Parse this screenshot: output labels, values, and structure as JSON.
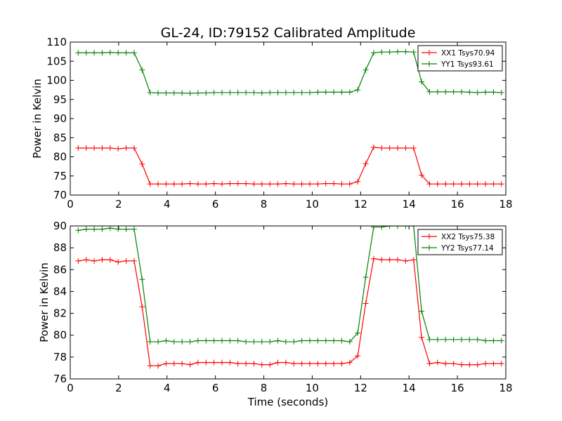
{
  "figure": {
    "title": "GL-24, ID:79152 Calibrated Amplitude",
    "xlabel": "Time (seconds)"
  },
  "chart_data": [
    {
      "type": "line",
      "title": "GL-24, ID:79152 Calibrated Amplitude",
      "xlabel": "",
      "ylabel": "Power in Kelvin",
      "xlim": [
        0,
        18
      ],
      "ylim": [
        70,
        110
      ],
      "xticks": [
        0,
        2,
        4,
        6,
        8,
        10,
        12,
        14,
        16,
        18
      ],
      "yticks": [
        70,
        75,
        80,
        85,
        90,
        95,
        100,
        105,
        110
      ],
      "legend_position": "top-right",
      "marker": "+",
      "series": [
        {
          "name": "XX1 Tsys70.94",
          "color": "#ff0000",
          "x": [
            0.33,
            0.66,
            0.99,
            1.32,
            1.65,
            1.98,
            2.31,
            2.64,
            2.97,
            3.3,
            3.63,
            3.96,
            4.29,
            4.62,
            4.95,
            5.28,
            5.61,
            5.94,
            6.27,
            6.6,
            6.93,
            7.26,
            7.59,
            7.92,
            8.25,
            8.58,
            8.91,
            9.24,
            9.57,
            9.9,
            10.23,
            10.56,
            10.89,
            11.22,
            11.55,
            11.88,
            12.21,
            12.54,
            12.87,
            13.2,
            13.53,
            13.86,
            14.19,
            14.52,
            14.85,
            15.18,
            15.51,
            15.84,
            16.17,
            16.5,
            16.83,
            17.16,
            17.49,
            17.82
          ],
          "y": [
            82.3,
            82.3,
            82.3,
            82.3,
            82.3,
            82.1,
            82.3,
            82.3,
            78.1,
            72.9,
            72.9,
            72.9,
            72.9,
            72.9,
            73.0,
            72.9,
            72.9,
            73.0,
            72.9,
            73.0,
            73.0,
            73.0,
            72.9,
            72.9,
            72.9,
            72.9,
            73.0,
            72.9,
            72.9,
            72.9,
            72.9,
            73.0,
            73.0,
            72.9,
            72.9,
            73.5,
            78.2,
            82.5,
            82.3,
            82.3,
            82.3,
            82.3,
            82.3,
            75.2,
            72.9,
            72.9,
            72.9,
            72.9,
            72.9,
            72.9,
            72.9,
            72.9,
            72.9,
            72.9
          ]
        },
        {
          "name": "YY1 Tsys93.61",
          "color": "#008000",
          "x": [
            0.33,
            0.66,
            0.99,
            1.32,
            1.65,
            1.98,
            2.31,
            2.64,
            2.97,
            3.3,
            3.63,
            3.96,
            4.29,
            4.62,
            4.95,
            5.28,
            5.61,
            5.94,
            6.27,
            6.6,
            6.93,
            7.26,
            7.59,
            7.92,
            8.25,
            8.58,
            8.91,
            9.24,
            9.57,
            9.9,
            10.23,
            10.56,
            10.89,
            11.22,
            11.55,
            11.88,
            12.21,
            12.54,
            12.87,
            13.2,
            13.53,
            13.86,
            14.19,
            14.52,
            14.85,
            15.18,
            15.51,
            15.84,
            16.17,
            16.5,
            16.83,
            17.16,
            17.49,
            17.82
          ],
          "y": [
            107.2,
            107.2,
            107.2,
            107.2,
            107.3,
            107.2,
            107.2,
            107.2,
            102.7,
            96.8,
            96.7,
            96.7,
            96.7,
            96.7,
            96.6,
            96.7,
            96.7,
            96.8,
            96.8,
            96.8,
            96.8,
            96.8,
            96.8,
            96.7,
            96.8,
            96.8,
            96.8,
            96.8,
            96.8,
            96.8,
            96.9,
            96.9,
            96.9,
            96.9,
            96.9,
            97.5,
            102.7,
            107.2,
            107.4,
            107.4,
            107.5,
            107.5,
            107.4,
            99.6,
            97.0,
            97.0,
            97.0,
            97.0,
            97.0,
            96.9,
            96.8,
            96.9,
            96.9,
            96.8
          ]
        }
      ]
    },
    {
      "type": "line",
      "title": "",
      "xlabel": "Time (seconds)",
      "ylabel": "Power in Kelvin",
      "xlim": [
        0,
        18
      ],
      "ylim": [
        76,
        90
      ],
      "xticks": [
        0,
        2,
        4,
        6,
        8,
        10,
        12,
        14,
        16,
        18
      ],
      "yticks": [
        76,
        78,
        80,
        82,
        84,
        86,
        88,
        90
      ],
      "legend_position": "top-right",
      "marker": "+",
      "series": [
        {
          "name": "XX2 Tsys75.38",
          "color": "#ff0000",
          "x": [
            0.33,
            0.66,
            0.99,
            1.32,
            1.65,
            1.98,
            2.31,
            2.64,
            2.97,
            3.3,
            3.63,
            3.96,
            4.29,
            4.62,
            4.95,
            5.28,
            5.61,
            5.94,
            6.27,
            6.6,
            6.93,
            7.26,
            7.59,
            7.92,
            8.25,
            8.58,
            8.91,
            9.24,
            9.57,
            9.9,
            10.23,
            10.56,
            10.89,
            11.22,
            11.55,
            11.88,
            12.21,
            12.54,
            12.87,
            13.2,
            13.53,
            13.86,
            14.19,
            14.52,
            14.85,
            15.18,
            15.51,
            15.84,
            16.17,
            16.5,
            16.83,
            17.16,
            17.49,
            17.82
          ],
          "y": [
            86.8,
            86.9,
            86.8,
            86.9,
            86.9,
            86.7,
            86.8,
            86.8,
            82.6,
            77.2,
            77.2,
            77.4,
            77.4,
            77.4,
            77.3,
            77.5,
            77.5,
            77.5,
            77.5,
            77.5,
            77.4,
            77.4,
            77.4,
            77.3,
            77.3,
            77.5,
            77.5,
            77.4,
            77.4,
            77.4,
            77.4,
            77.4,
            77.4,
            77.4,
            77.5,
            78.1,
            82.9,
            87.0,
            86.9,
            86.9,
            86.9,
            86.8,
            86.9,
            79.8,
            77.4,
            77.5,
            77.4,
            77.4,
            77.3,
            77.3,
            77.3,
            77.4,
            77.4,
            77.4
          ]
        },
        {
          "name": "YY2 Tsys77.14",
          "color": "#008000",
          "x": [
            0.33,
            0.66,
            0.99,
            1.32,
            1.65,
            1.98,
            2.31,
            2.64,
            2.97,
            3.3,
            3.63,
            3.96,
            4.29,
            4.62,
            4.95,
            5.28,
            5.61,
            5.94,
            6.27,
            6.6,
            6.93,
            7.26,
            7.59,
            7.92,
            8.25,
            8.58,
            8.91,
            9.24,
            9.57,
            9.9,
            10.23,
            10.56,
            10.89,
            11.22,
            11.55,
            11.88,
            12.21,
            12.54,
            12.87,
            13.2,
            13.53,
            13.86,
            14.19,
            14.52,
            14.85,
            15.18,
            15.51,
            15.84,
            16.17,
            16.5,
            16.83,
            17.16,
            17.49,
            17.82
          ],
          "y": [
            89.6,
            89.7,
            89.7,
            89.7,
            89.8,
            89.7,
            89.7,
            89.7,
            85.1,
            79.4,
            79.4,
            79.5,
            79.4,
            79.4,
            79.4,
            79.5,
            79.5,
            79.5,
            79.5,
            79.5,
            79.5,
            79.4,
            79.4,
            79.4,
            79.4,
            79.5,
            79.4,
            79.4,
            79.5,
            79.5,
            79.5,
            79.5,
            79.5,
            79.5,
            79.4,
            80.2,
            85.3,
            89.9,
            89.9,
            90.0,
            90.0,
            90.0,
            90.0,
            82.2,
            79.6,
            79.6,
            79.6,
            79.6,
            79.6,
            79.6,
            79.6,
            79.5,
            79.5,
            79.5
          ]
        }
      ]
    }
  ]
}
